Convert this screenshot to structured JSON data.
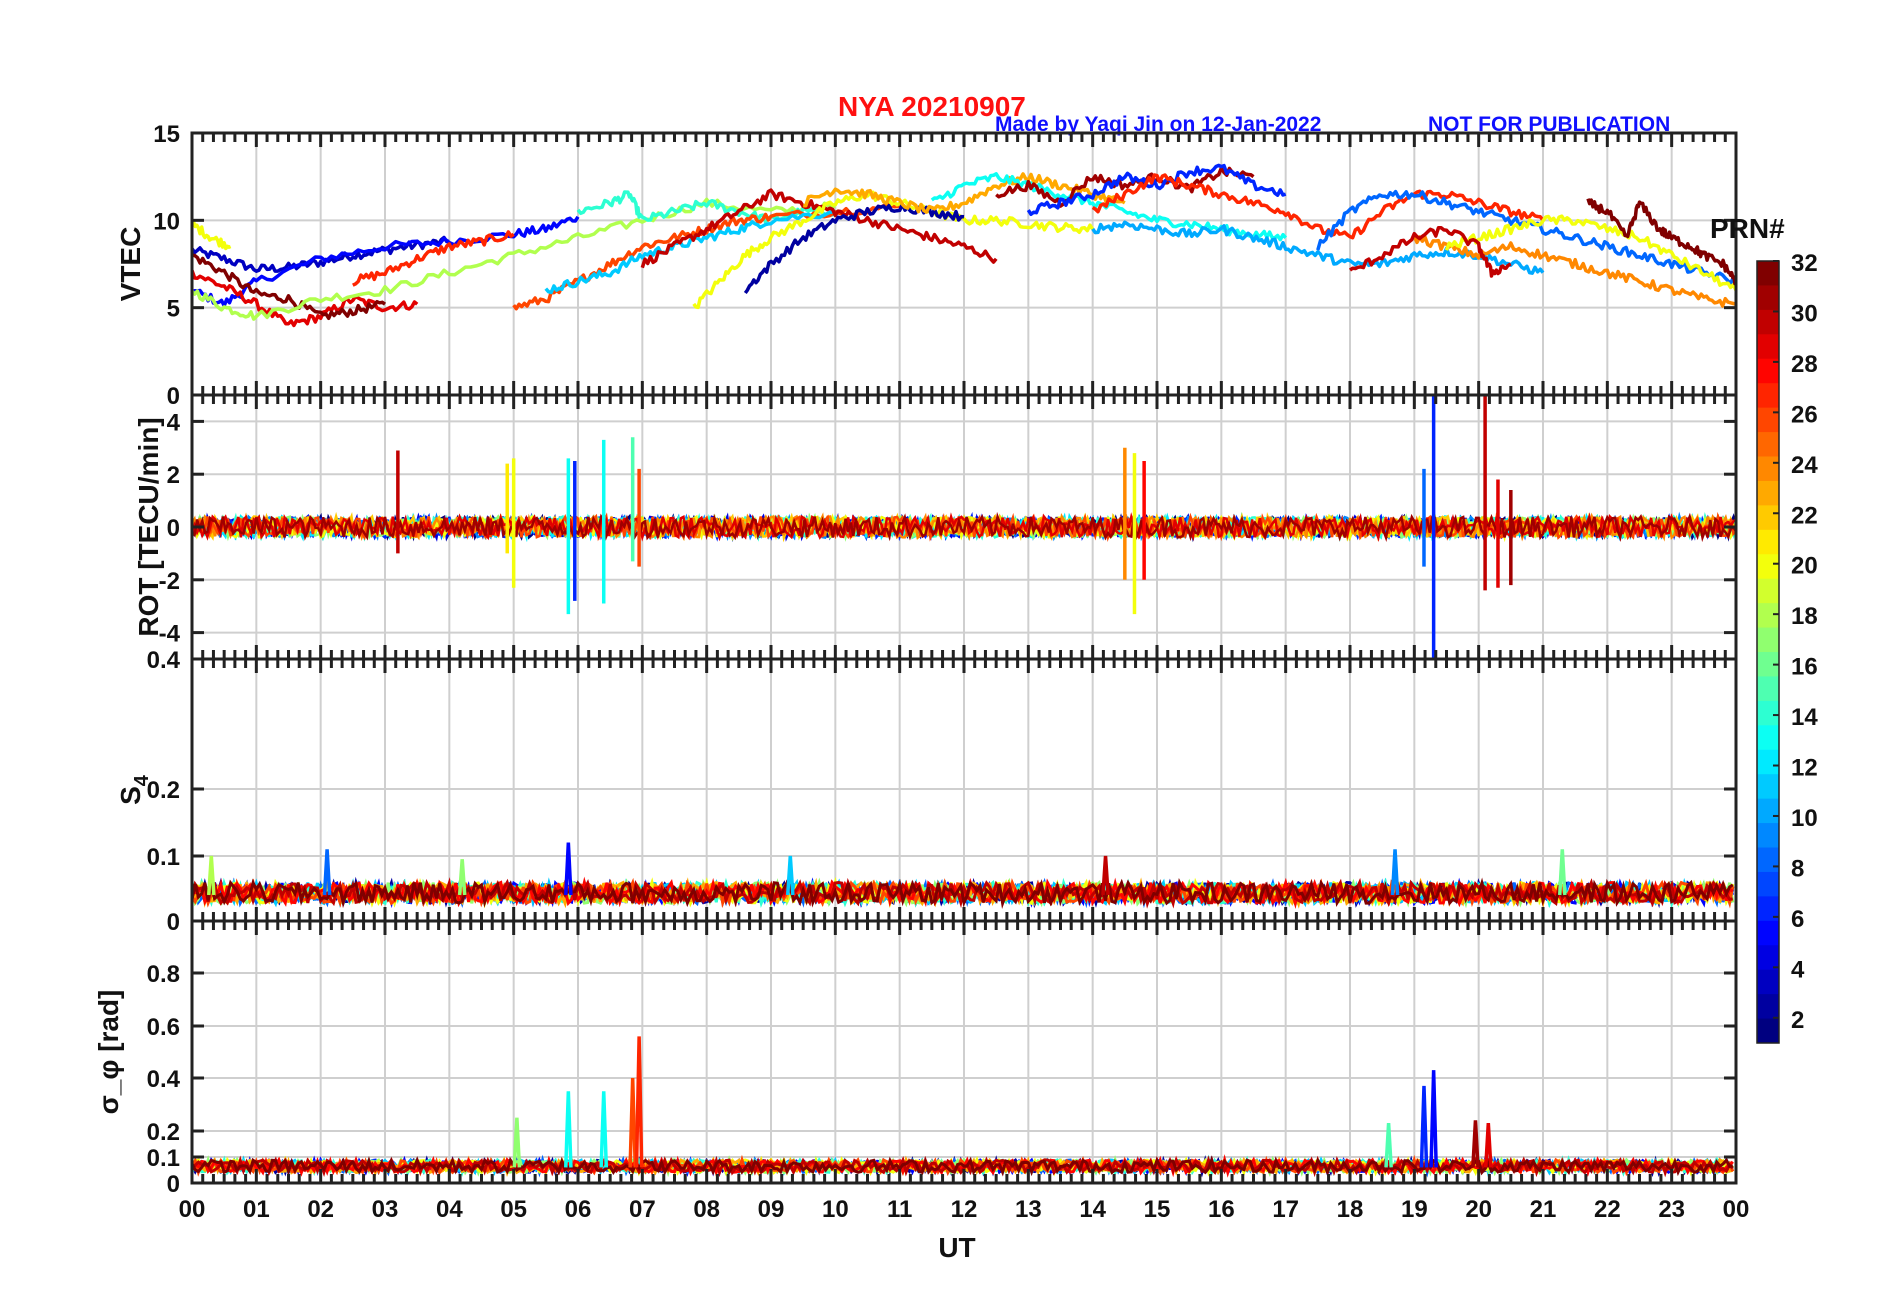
{
  "header": {
    "title": "NYA   20210907",
    "credit": "Made by Yaqi Jin on 12-Jan-2022",
    "notice": "NOT FOR PUBLICATION"
  },
  "colorbar": {
    "title": "PRN#",
    "range": [
      1,
      32
    ],
    "ticks": [
      "2",
      "4",
      "6",
      "8",
      "10",
      "12",
      "14",
      "16",
      "18",
      "20",
      "22",
      "24",
      "26",
      "28",
      "30",
      "32"
    ],
    "colormap": "jet"
  },
  "chart_data": [
    {
      "type": "line",
      "panel": "vtec",
      "ylabel": "VTEC",
      "xlabel": "",
      "xlim": [
        0,
        24
      ],
      "ylim": [
        0,
        15
      ],
      "yticks": [
        "0",
        "5",
        "10",
        "15"
      ],
      "grid": true,
      "series": [
        {
          "prn": 3,
          "x": [
            0.0,
            0.5,
            1.0,
            1.5,
            2.0,
            2.5,
            3.0,
            3.5,
            4.0
          ],
          "y": [
            8.3,
            7.8,
            7.2,
            7.3,
            7.6,
            8.0,
            8.3,
            8.6,
            8.8
          ]
        },
        {
          "prn": 5,
          "x": [
            0.0,
            0.5,
            1.0,
            2.0,
            3.0,
            4.0,
            5.0,
            5.5,
            6.0
          ],
          "y": [
            6.0,
            5.2,
            6.5,
            7.8,
            8.5,
            8.8,
            9.2,
            9.5,
            10.2
          ]
        },
        {
          "prn": 29,
          "x": [
            0.0,
            0.5,
            1.0,
            1.5,
            2.0,
            2.5,
            3.0,
            3.5
          ],
          "y": [
            7.0,
            6.2,
            5.2,
            4.0,
            4.5,
            5.5,
            5.0,
            5.2
          ]
        },
        {
          "prn": 32,
          "x": [
            0.0,
            0.5,
            1.0,
            1.5,
            2.0,
            2.5,
            3.0
          ],
          "y": [
            8.0,
            7.0,
            5.8,
            5.5,
            4.5,
            4.8,
            5.2
          ]
        },
        {
          "prn": 18,
          "x": [
            0.0,
            0.5,
            1.0,
            2.0,
            3.0,
            4.0,
            5.0,
            6.0,
            7.0,
            8.0,
            9.0,
            10.0
          ],
          "y": [
            6.0,
            5.0,
            4.5,
            5.5,
            6.0,
            7.0,
            8.0,
            9.0,
            10.0,
            11.0,
            10.5,
            10.8
          ]
        },
        {
          "prn": 20,
          "x": [
            0.0,
            0.3,
            0.6
          ],
          "y": [
            9.8,
            9.0,
            8.5
          ]
        },
        {
          "prn": 27,
          "x": [
            2.5,
            3.0,
            3.5,
            4.0,
            4.5,
            5.0
          ],
          "y": [
            6.5,
            7.0,
            7.8,
            8.5,
            8.8,
            9.2
          ]
        },
        {
          "prn": 14,
          "x": [
            6.0,
            6.5,
            6.8,
            7.0,
            7.5,
            8.0,
            8.5,
            9.0,
            9.5,
            10.0
          ],
          "y": [
            10.5,
            11.0,
            11.5,
            10.0,
            10.5,
            11.0,
            10.5,
            10.0,
            10.5,
            10.5
          ]
        },
        {
          "prn": 26,
          "x": [
            5.0,
            5.5,
            6.0,
            6.5,
            7.0,
            7.5,
            8.0,
            8.5,
            9.0,
            10.0,
            11.0
          ],
          "y": [
            5.0,
            5.5,
            6.5,
            7.5,
            8.5,
            9.0,
            9.5,
            10.0,
            10.2,
            10.5,
            10.8
          ]
        },
        {
          "prn": 11,
          "x": [
            5.5,
            6.0,
            6.5,
            7.0,
            7.5,
            8.0,
            8.5,
            9.0,
            10.0
          ],
          "y": [
            6.0,
            6.5,
            7.0,
            8.0,
            8.5,
            9.0,
            9.5,
            10.0,
            10.5
          ]
        },
        {
          "prn": 30,
          "x": [
            7.0,
            7.5,
            8.0,
            8.5,
            9.0,
            9.5,
            10.0,
            10.5,
            11.0,
            11.5,
            12.0,
            12.5
          ],
          "y": [
            7.5,
            8.5,
            9.5,
            10.5,
            11.5,
            11.0,
            10.5,
            10.0,
            9.5,
            9.0,
            8.5,
            7.8
          ]
        },
        {
          "prn": 20,
          "x": [
            7.8,
            8.2,
            8.6,
            9.0,
            9.5,
            10.0,
            10.5,
            11.0,
            11.5,
            12.0,
            12.5,
            13.0,
            13.5,
            14.0
          ],
          "y": [
            5.0,
            6.5,
            8.0,
            9.0,
            10.0,
            11.0,
            11.5,
            11.0,
            10.5,
            10.0,
            10.0,
            9.8,
            9.6,
            9.5
          ]
        },
        {
          "prn": 2,
          "x": [
            8.6,
            9.0,
            9.5,
            10.0,
            10.5,
            11.0,
            11.5,
            12.0
          ],
          "y": [
            6.0,
            7.5,
            9.0,
            10.0,
            10.5,
            10.8,
            10.5,
            10.2
          ]
        },
        {
          "prn": 23,
          "x": [
            9.5,
            10.0,
            10.5,
            11.0,
            11.5,
            12.0,
            12.5,
            13.0,
            13.5,
            14.0,
            14.5
          ],
          "y": [
            11.0,
            11.8,
            11.5,
            11.0,
            10.5,
            11.0,
            12.0,
            12.5,
            12.0,
            11.5,
            11.0
          ]
        },
        {
          "prn": 13,
          "x": [
            11.5,
            12.0,
            12.5,
            13.0,
            13.5,
            14.0,
            14.5,
            15.0,
            15.5,
            16.0,
            16.5,
            17.0
          ],
          "y": [
            11.0,
            12.0,
            12.5,
            12.0,
            11.5,
            11.0,
            10.5,
            10.0,
            9.8,
            9.5,
            9.2,
            9.0
          ]
        },
        {
          "prn": 31,
          "x": [
            12.5,
            13.0,
            13.5,
            14.0,
            14.5,
            15.0,
            15.5,
            16.0,
            16.5
          ],
          "y": [
            11.5,
            12.0,
            11.0,
            12.5,
            12.0,
            12.5,
            11.8,
            12.8,
            12.5
          ]
        },
        {
          "prn": 6,
          "x": [
            13.0,
            13.5,
            14.0,
            14.5,
            15.0,
            15.5,
            16.0,
            16.5,
            17.0
          ],
          "y": [
            10.5,
            11.0,
            11.5,
            12.5,
            12.0,
            12.8,
            13.0,
            12.0,
            11.5
          ]
        },
        {
          "prn": 27,
          "x": [
            14.0,
            14.5,
            15.0,
            15.5,
            16.0,
            16.5,
            17.0,
            17.5,
            18.0,
            18.5,
            19.0,
            19.5,
            20.0,
            20.5,
            21.0
          ],
          "y": [
            10.5,
            11.5,
            12.5,
            12.0,
            11.5,
            11.0,
            10.5,
            9.5,
            9.0,
            10.5,
            11.5,
            11.5,
            11.0,
            10.5,
            10.0
          ]
        },
        {
          "prn": 10,
          "x": [
            14.0,
            14.5,
            15.0,
            15.5,
            16.0,
            16.5,
            17.0,
            17.5,
            18.0,
            18.5,
            19.0,
            19.5,
            20.0,
            20.5,
            21.0
          ],
          "y": [
            9.5,
            9.8,
            9.5,
            9.2,
            9.5,
            9.0,
            8.5,
            8.0,
            7.5,
            7.5,
            8.0,
            8.2,
            8.0,
            7.5,
            7.0
          ]
        },
        {
          "prn": 8,
          "x": [
            17.5,
            18.0,
            18.5,
            19.0,
            19.5,
            20.0,
            20.5,
            21.0,
            21.5,
            22.0,
            22.5,
            23.0,
            23.5,
            24.0
          ],
          "y": [
            8.5,
            10.5,
            11.5,
            11.5,
            11.0,
            10.5,
            10.0,
            9.5,
            9.0,
            8.5,
            8.0,
            7.5,
            7.0,
            6.5
          ]
        },
        {
          "prn": 24,
          "x": [
            19.0,
            19.5,
            20.0,
            20.5,
            21.0,
            21.5,
            22.0,
            22.5,
            23.0,
            23.5,
            24.0
          ],
          "y": [
            9.0,
            8.5,
            8.0,
            8.5,
            8.0,
            7.5,
            7.0,
            6.5,
            6.0,
            5.5,
            5.2
          ]
        },
        {
          "prn": 20,
          "x": [
            19.5,
            20.0,
            20.5,
            21.0,
            21.5,
            22.0,
            22.5,
            23.0,
            23.5,
            24.0
          ],
          "y": [
            8.5,
            9.0,
            9.5,
            10.0,
            10.0,
            9.5,
            9.0,
            8.0,
            7.0,
            6.0
          ]
        },
        {
          "prn": 32,
          "x": [
            21.7,
            22.0,
            22.3,
            22.5,
            22.8,
            23.0,
            23.3,
            23.5,
            23.8,
            24.0
          ],
          "y": [
            11.0,
            10.5,
            9.0,
            11.0,
            9.5,
            9.0,
            8.5,
            8.0,
            7.5,
            6.5
          ]
        },
        {
          "prn": 30,
          "x": [
            18.0,
            18.5,
            19.0,
            19.5,
            20.0,
            20.2,
            20.5
          ],
          "y": [
            7.0,
            8.0,
            9.0,
            9.5,
            8.5,
            7.0,
            7.5
          ]
        }
      ]
    },
    {
      "type": "line",
      "panel": "rot",
      "ylabel": "ROT [TECU/min]",
      "xlabel": "",
      "xlim": [
        0,
        24
      ],
      "ylim": [
        -5,
        5
      ],
      "yticks": [
        "-4",
        "-2",
        "0",
        "2",
        "4"
      ],
      "grid": true,
      "spikes": [
        {
          "prn": 30,
          "x": 3.2,
          "min": -1.0,
          "max": 2.9
        },
        {
          "prn": 20,
          "x": 5.0,
          "min": -2.3,
          "max": 2.6
        },
        {
          "prn": 21,
          "x": 4.9,
          "min": -1.0,
          "max": 2.4
        },
        {
          "prn": 13,
          "x": 5.85,
          "min": -3.3,
          "max": 2.6
        },
        {
          "prn": 6,
          "x": 5.95,
          "min": -2.8,
          "max": 2.5
        },
        {
          "prn": 13,
          "x": 6.4,
          "min": -2.9,
          "max": 3.3
        },
        {
          "prn": 15,
          "x": 6.85,
          "min": -1.3,
          "max": 3.4
        },
        {
          "prn": 26,
          "x": 6.95,
          "min": -1.5,
          "max": 2.2
        },
        {
          "prn": 24,
          "x": 14.5,
          "min": -2.0,
          "max": 3.0
        },
        {
          "prn": 20,
          "x": 14.65,
          "min": -3.3,
          "max": 2.8
        },
        {
          "prn": 28,
          "x": 14.8,
          "min": -2.0,
          "max": 2.5
        },
        {
          "prn": 6,
          "x": 19.3,
          "min": -5.0,
          "max": 5.0
        },
        {
          "prn": 8,
          "x": 19.15,
          "min": -1.5,
          "max": 2.2
        },
        {
          "prn": 30,
          "x": 20.1,
          "min": -2.4,
          "max": 5.0
        },
        {
          "prn": 29,
          "x": 20.3,
          "min": -2.3,
          "max": 1.8
        },
        {
          "prn": 31,
          "x": 20.5,
          "min": -2.2,
          "max": 1.4
        }
      ],
      "noise_amplitude": 0.4
    },
    {
      "type": "line",
      "panel": "s4",
      "ylabel": "S4",
      "xlabel": "",
      "xlim": [
        0,
        24
      ],
      "ylim": [
        0,
        0.4
      ],
      "yticks": [
        "0",
        "0.1",
        "0.2",
        "0.4"
      ],
      "grid": true,
      "baseline": 0.04,
      "peaks": [
        {
          "prn": 18,
          "x": 0.3,
          "y": 0.1
        },
        {
          "prn": 8,
          "x": 2.1,
          "y": 0.11
        },
        {
          "prn": 17,
          "x": 4.2,
          "y": 0.095
        },
        {
          "prn": 5,
          "x": 5.85,
          "y": 0.12
        },
        {
          "prn": 11,
          "x": 9.3,
          "y": 0.1
        },
        {
          "prn": 30,
          "x": 14.2,
          "y": 0.1
        },
        {
          "prn": 9,
          "x": 18.7,
          "y": 0.11
        },
        {
          "prn": 16,
          "x": 21.3,
          "y": 0.11
        }
      ]
    },
    {
      "type": "line",
      "panel": "sigma_phi",
      "ylabel": "σ_φ [rad]",
      "xlabel": "UT",
      "xlim": [
        0,
        24
      ],
      "ylim": [
        0,
        1
      ],
      "yticks": [
        "0",
        "0.1",
        "0.2",
        "0.4",
        "0.6",
        "0.8"
      ],
      "xticks": [
        "00",
        "01",
        "02",
        "03",
        "04",
        "05",
        "06",
        "07",
        "08",
        "09",
        "10",
        "11",
        "12",
        "13",
        "14",
        "15",
        "16",
        "17",
        "18",
        "19",
        "20",
        "21",
        "22",
        "23",
        "00"
      ],
      "grid": true,
      "baseline": 0.06,
      "peaks": [
        {
          "prn": 17,
          "x": 5.05,
          "y": 0.25
        },
        {
          "prn": 13,
          "x": 5.85,
          "y": 0.35
        },
        {
          "prn": 13,
          "x": 6.4,
          "y": 0.35
        },
        {
          "prn": 26,
          "x": 6.85,
          "y": 0.4
        },
        {
          "prn": 27,
          "x": 6.95,
          "y": 0.56
        },
        {
          "prn": 15,
          "x": 18.6,
          "y": 0.23
        },
        {
          "prn": 6,
          "x": 19.15,
          "y": 0.37
        },
        {
          "prn": 5,
          "x": 19.3,
          "y": 0.43
        },
        {
          "prn": 31,
          "x": 19.95,
          "y": 0.24
        },
        {
          "prn": 29,
          "x": 20.15,
          "y": 0.23
        }
      ]
    }
  ]
}
